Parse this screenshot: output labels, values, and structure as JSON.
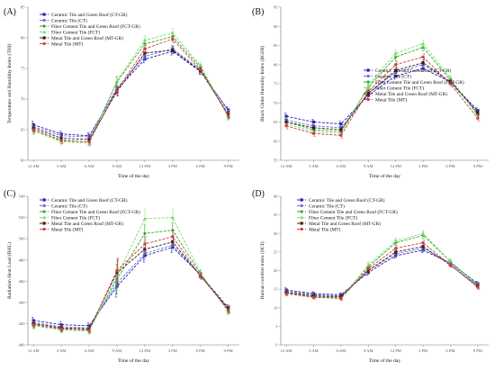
{
  "x_categories": [
    "12 AM",
    "3 AM",
    "6 AM",
    "9 AM",
    "12 PM",
    "3 PM",
    "6 PM",
    "9 PM"
  ],
  "colors": {
    "CT-GR": "#1f1fb4",
    "CT": "#6c6ce0",
    "FCT-GR": "#2aa82a",
    "FCT": "#7cdc6c",
    "MT-GR": "#3a1a1a",
    "MT": "#d23a3a"
  },
  "chart_data": [
    {
      "type": "line",
      "panel_label": "(A)",
      "xlabel": "Time of the day",
      "ylabel": "Temperature and Humidity Index (THI)",
      "ylim": [
        60,
        85
      ],
      "yticks": [
        60,
        65,
        70,
        75,
        80,
        85
      ],
      "legend_position": "top-left",
      "categories": [
        "12 AM",
        "3 AM",
        "6 AM",
        "9 AM",
        "12 PM",
        "3 PM",
        "6 PM",
        "9 PM"
      ],
      "series": [
        {
          "name": "Ceramic Tile and Green Roof (CT-GR)",
          "key": "CT-GR",
          "values": [
            65.8,
            64.3,
            64.0,
            71.5,
            76.5,
            77.8,
            74.5,
            68.2
          ],
          "err": [
            0.6,
            0.5,
            0.5,
            0.7,
            0.6,
            0.6,
            0.5,
            0.5
          ]
        },
        {
          "name": "Ceramic Tile (CT)",
          "key": "CT",
          "values": [
            65.5,
            64.0,
            63.8,
            71.8,
            77.0,
            78.2,
            74.8,
            68.0
          ],
          "err": [
            0.6,
            0.5,
            0.5,
            0.7,
            0.6,
            0.6,
            0.5,
            0.5
          ]
        },
        {
          "name": "Fiber Cement Tile and Green Roof (FCT-GR)",
          "key": "FCT-GR",
          "values": [
            65.0,
            63.3,
            63.0,
            72.8,
            79.0,
            80.2,
            75.2,
            67.2
          ],
          "err": [
            0.6,
            0.5,
            0.5,
            0.8,
            0.7,
            0.7,
            0.5,
            0.5
          ]
        },
        {
          "name": "Fiber Cement Tile (FCT)",
          "key": "FCT",
          "values": [
            64.8,
            63.0,
            62.8,
            73.0,
            79.6,
            80.8,
            75.5,
            67.0
          ],
          "err": [
            0.6,
            0.5,
            0.5,
            0.8,
            0.7,
            0.7,
            0.5,
            0.5
          ]
        },
        {
          "name": "Metal Tile and Green Roof (MT-GR)",
          "key": "MT-GR",
          "values": [
            65.3,
            63.6,
            63.4,
            71.2,
            77.5,
            78.0,
            74.6,
            67.5
          ],
          "err": [
            0.6,
            0.5,
            0.5,
            0.7,
            0.6,
            0.6,
            0.5,
            0.5
          ]
        },
        {
          "name": "Metal Tile (MT)",
          "key": "MT",
          "values": [
            65.0,
            63.2,
            63.0,
            71.4,
            78.2,
            79.8,
            74.8,
            67.3
          ],
          "err": [
            0.6,
            0.5,
            0.5,
            0.7,
            0.6,
            0.6,
            0.5,
            0.5
          ]
        }
      ]
    },
    {
      "type": "line",
      "panel_label": "(B)",
      "xlabel": "Time of the day",
      "ylabel": "Black Globe Humidity Index (BGHI)",
      "ylim": [
        55,
        95
      ],
      "yticks": [
        55,
        60,
        65,
        70,
        75,
        80,
        85,
        90,
        95
      ],
      "legend_position": "center-right",
      "categories": [
        "12 AM",
        "3 AM",
        "6 AM",
        "9 AM",
        "12 PM",
        "3 PM",
        "6 PM",
        "9 PM"
      ],
      "series": [
        {
          "name": "Ceramic Tile and Green Roof (CT-GR)",
          "key": "CT-GR",
          "values": [
            66.5,
            65.0,
            64.5,
            72.0,
            77.0,
            79.0,
            75.5,
            68.0
          ],
          "err": [
            0.8,
            0.7,
            0.7,
            0.9,
            0.8,
            0.8,
            0.7,
            0.7
          ]
        },
        {
          "name": "Ceramic Tile (CT)",
          "key": "CT",
          "values": [
            65.5,
            64.0,
            63.5,
            72.5,
            78.0,
            80.0,
            75.5,
            67.5
          ],
          "err": [
            0.8,
            0.7,
            0.7,
            0.9,
            0.8,
            0.8,
            0.7,
            0.7
          ]
        },
        {
          "name": "Fiber Cement Tile and Green Roof (FCT-GR)",
          "key": "FCT-GR",
          "values": [
            65.0,
            63.0,
            62.5,
            74.0,
            82.0,
            84.5,
            76.0,
            67.0
          ],
          "err": [
            0.8,
            0.7,
            0.7,
            1.0,
            0.9,
            0.9,
            0.7,
            0.7
          ]
        },
        {
          "name": "Fiber Cement Tile (FCT)",
          "key": "FCT",
          "values": [
            64.5,
            62.5,
            62.0,
            74.5,
            83.0,
            85.5,
            76.5,
            66.5
          ],
          "err": [
            0.8,
            0.7,
            0.7,
            1.0,
            0.9,
            0.9,
            0.7,
            0.7
          ]
        },
        {
          "name": "Metal Tile and Green Roof (MT-GR)",
          "key": "MT-GR",
          "values": [
            65.0,
            63.5,
            63.0,
            72.5,
            78.5,
            80.5,
            75.5,
            67.5
          ],
          "err": [
            0.8,
            0.7,
            0.7,
            0.9,
            0.8,
            0.8,
            0.7,
            0.7
          ]
        },
        {
          "name": "Metal Tile (MT)",
          "key": "MT",
          "values": [
            64.0,
            62.0,
            61.5,
            73.0,
            80.0,
            82.0,
            75.0,
            66.0
          ],
          "err": [
            0.8,
            0.7,
            0.7,
            0.9,
            0.8,
            0.8,
            0.7,
            0.7
          ]
        }
      ]
    },
    {
      "type": "line",
      "panel_label": "(C)",
      "xlabel": "Time of the day",
      "ylabel": "Radiation Heat Load (RHL)",
      "ylim": [
        400,
        540
      ],
      "yticks": [
        400,
        420,
        440,
        460,
        480,
        500,
        520,
        540
      ],
      "legend_position": "top-left",
      "categories": [
        "12 AM",
        "3 AM",
        "6 AM",
        "9 AM",
        "12 PM",
        "3 PM",
        "6 PM",
        "9 PM"
      ],
      "series": [
        {
          "name": "Ceramic Tile and Green Roof (CT-GR)",
          "key": "CT-GR",
          "values": [
            423,
            419,
            418,
            455,
            484,
            492,
            466,
            435
          ],
          "err": [
            3,
            3,
            3,
            10,
            6,
            5,
            3,
            3
          ]
        },
        {
          "name": "Ceramic Tile (CT)",
          "key": "CT",
          "values": [
            421,
            417,
            416,
            458,
            486,
            494,
            466,
            433
          ],
          "err": [
            3,
            3,
            3,
            10,
            6,
            5,
            3,
            3
          ]
        },
        {
          "name": "Fiber Cement Tile and Green Roof (FCT-GR)",
          "key": "FCT-GR",
          "values": [
            419,
            415,
            414,
            462,
            505,
            508,
            467,
            432
          ],
          "err": [
            3,
            3,
            3,
            14,
            8,
            7,
            3,
            3
          ]
        },
        {
          "name": "Fiber Cement Tile (FCT)",
          "key": "FCT",
          "values": [
            418,
            414,
            413,
            465,
            519,
            520,
            468,
            431
          ],
          "err": [
            3,
            3,
            3,
            14,
            9,
            8,
            3,
            3
          ]
        },
        {
          "name": "Metal Tile and Green Roof (MT-GR)",
          "key": "MT-GR",
          "values": [
            420,
            416,
            415,
            468,
            490,
            497,
            465,
            434
          ],
          "err": [
            3,
            3,
            3,
            12,
            6,
            5,
            3,
            3
          ]
        },
        {
          "name": "Metal Tile (MT)",
          "key": "MT",
          "values": [
            419,
            415,
            414,
            470,
            495,
            502,
            465,
            433
          ],
          "err": [
            3,
            3,
            3,
            12,
            7,
            6,
            3,
            3
          ]
        }
      ]
    },
    {
      "type": "line",
      "panel_label": "(D)",
      "xlabel": "Time of the day",
      "ylabel": "Human comfort index (HCI)",
      "ylim": [
        0,
        40
      ],
      "yticks": [
        0,
        5,
        10,
        15,
        20,
        25,
        30,
        35,
        40
      ],
      "legend_position": "top-left",
      "categories": [
        "12 AM",
        "3 AM",
        "6 AM",
        "9 AM",
        "12 PM",
        "3 PM",
        "6 PM",
        "9 PM"
      ],
      "series": [
        {
          "name": "Ceramic Tile and Green Roof (CT-GR)",
          "key": "CT-GR",
          "values": [
            14.8,
            13.8,
            13.5,
            19.5,
            24.0,
            25.5,
            22.0,
            16.5
          ],
          "err": [
            0.6,
            0.5,
            0.5,
            0.8,
            0.7,
            0.7,
            0.6,
            0.6
          ]
        },
        {
          "name": "Ceramic Tile (CT)",
          "key": "CT",
          "values": [
            14.5,
            13.5,
            13.2,
            20.0,
            24.5,
            26.0,
            22.0,
            16.2
          ],
          "err": [
            0.6,
            0.5,
            0.5,
            0.8,
            0.7,
            0.7,
            0.6,
            0.6
          ]
        },
        {
          "name": "Fiber Cement Tile and Green Roof (FCT-GR)",
          "key": "FCT-GR",
          "values": [
            14.0,
            13.0,
            12.8,
            21.0,
            27.5,
            29.5,
            22.5,
            16.0
          ],
          "err": [
            0.6,
            0.5,
            0.5,
            0.9,
            0.8,
            0.8,
            0.6,
            0.6
          ]
        },
        {
          "name": "Fiber Cement Tile (FCT)",
          "key": "FCT",
          "values": [
            13.8,
            12.8,
            12.5,
            21.5,
            28.0,
            30.0,
            22.5,
            15.8
          ],
          "err": [
            0.6,
            0.5,
            0.5,
            0.9,
            0.8,
            0.8,
            0.6,
            0.6
          ]
        },
        {
          "name": "Metal Tile and Green Roof (MT-GR)",
          "key": "MT-GR",
          "values": [
            14.2,
            13.2,
            13.0,
            20.0,
            25.0,
            26.5,
            21.5,
            15.8
          ],
          "err": [
            0.6,
            0.5,
            0.5,
            0.8,
            0.7,
            0.7,
            0.6,
            0.6
          ]
        },
        {
          "name": "Metal Tile (MT)",
          "key": "MT",
          "values": [
            13.8,
            12.8,
            12.5,
            20.5,
            26.0,
            27.5,
            21.5,
            15.5
          ],
          "err": [
            0.6,
            0.5,
            0.5,
            0.8,
            0.7,
            0.7,
            0.6,
            0.6
          ]
        }
      ]
    }
  ]
}
